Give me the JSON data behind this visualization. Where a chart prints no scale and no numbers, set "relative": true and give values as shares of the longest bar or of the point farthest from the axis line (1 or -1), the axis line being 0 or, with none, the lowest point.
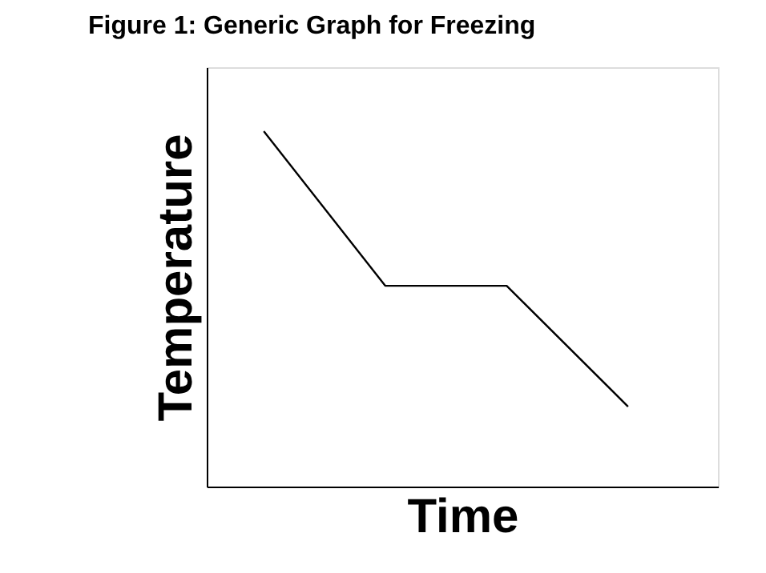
{
  "chart_data": {
    "type": "line",
    "title": "Figure 1: Generic Graph for Freezing",
    "xlabel": "Time",
    "ylabel": "Temperature",
    "relative": true,
    "categories": [
      null,
      null,
      null,
      null
    ],
    "series": [
      {
        "color": "#000000",
        "values": [
          1,
          0.565,
          0.565,
          0.225
        ]
      }
    ]
  }
}
